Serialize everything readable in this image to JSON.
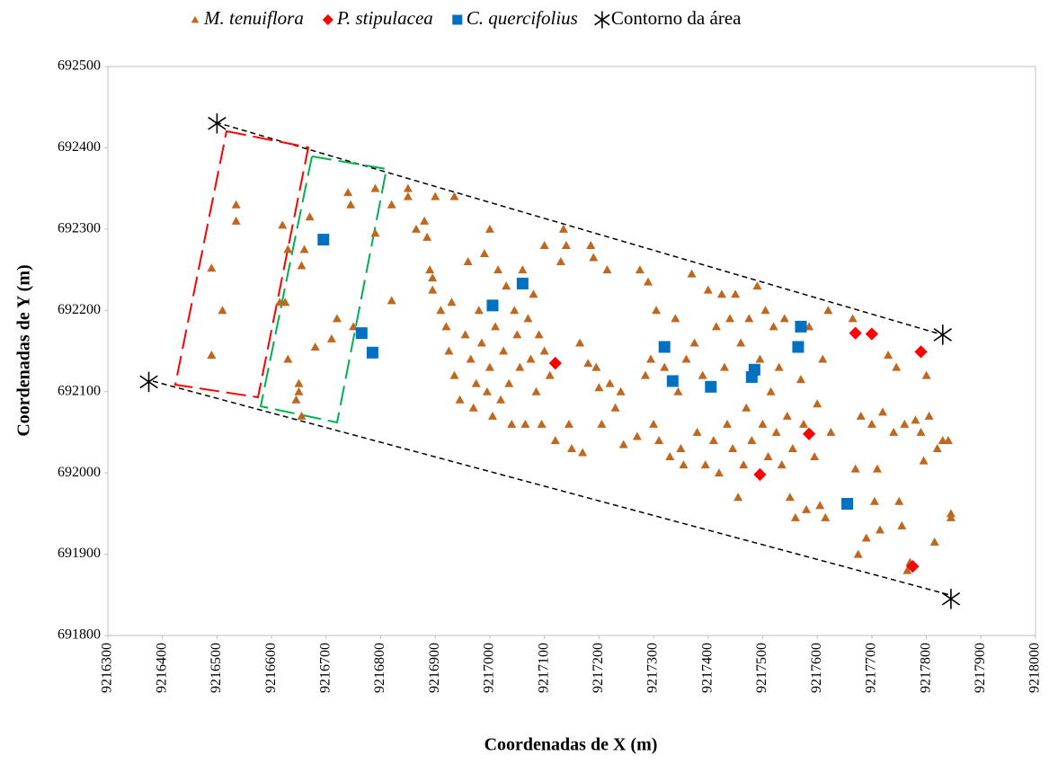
{
  "chart_data": {
    "type": "scatter",
    "x_label": "Coordenadas de X (m)",
    "y_label": "Coordenadas de Y (m)",
    "xlim": [
      9216300,
      9218000
    ],
    "xticks": [
      9216300,
      9216400,
      9216500,
      9216600,
      9216700,
      9216800,
      9216900,
      9217000,
      9217100,
      9217200,
      9217300,
      9217400,
      9217500,
      9217600,
      9217700,
      9217800,
      9217900,
      9218000
    ],
    "ylim": [
      691800,
      692500
    ],
    "yticks": [
      691800,
      691900,
      692000,
      692100,
      692200,
      692300,
      692400,
      692500
    ],
    "grid": false,
    "legend": "top",
    "series": [
      {
        "name": "M. tenuiflora",
        "color": "#c0661d",
        "marker": "triangle",
        "x": [
          9216490,
          9216490,
          9216510,
          9216535,
          9216535,
          9216620,
          9216615,
          9216625,
          9216630,
          9216655,
          9216660,
          9216670,
          9216680,
          9216710,
          9216720,
          9216740,
          9216745,
          9216750,
          9216630,
          9216650,
          9216650,
          9216645,
          9216655,
          9216790,
          9216790,
          9216820,
          9216820,
          9216850,
          9216850,
          9216865,
          9216880,
          9216885,
          9216890,
          9216895,
          9216895,
          9216900,
          9216935,
          9216910,
          9216920,
          9216925,
          9216930,
          9216935,
          9216945,
          9216955,
          9216960,
          9216965,
          9216970,
          9216975,
          9216980,
          9216985,
          9216990,
          9216995,
          9217000,
          9217000,
          9217005,
          9217010,
          9217015,
          9217020,
          9217025,
          9217030,
          9217035,
          9217040,
          9217045,
          9217050,
          9217055,
          9217060,
          9217065,
          9217070,
          9217075,
          9217080,
          9217085,
          9217090,
          9217095,
          9217100,
          9217100,
          9217110,
          9217120,
          9217130,
          9217135,
          9217140,
          9217145,
          9217150,
          9217165,
          9217170,
          9217180,
          9217185,
          9217190,
          9217195,
          9217200,
          9217205,
          9217215,
          9217220,
          9217230,
          9217240,
          9217245,
          9217270,
          9217275,
          9217285,
          9217290,
          9217295,
          9217300,
          9217305,
          9217310,
          9217320,
          9217330,
          9217340,
          9217345,
          9217350,
          9217355,
          9217360,
          9217370,
          9217375,
          9217380,
          9217390,
          9217395,
          9217400,
          9217410,
          9217415,
          9217420,
          9217425,
          9217430,
          9217435,
          9217440,
          9217445,
          9217450,
          9217455,
          9217460,
          9217465,
          9217470,
          9217475,
          9217480,
          9217490,
          9217495,
          9217500,
          9217505,
          9217510,
          9217515,
          9217520,
          9217525,
          9217530,
          9217535,
          9217540,
          9217545,
          9217550,
          9217555,
          9217560,
          9217570,
          9217575,
          9217580,
          9217585,
          9217595,
          9217600,
          9217605,
          9217610,
          9217615,
          9217620,
          9217625,
          9217665,
          9217670,
          9217675,
          9217680,
          9217690,
          9217700,
          9217705,
          9217710,
          9217715,
          9217720,
          9217730,
          9217740,
          9217745,
          9217750,
          9217755,
          9217760,
          9217765,
          9217770,
          9217780,
          9217790,
          9217795,
          9217800,
          9217805,
          9217815,
          9217820,
          9217830,
          9217840,
          9217845,
          9217845
        ],
        "values": [
          692252,
          692145,
          692200,
          692330,
          692310,
          692305,
          692210,
          692210,
          692275,
          692255,
          692275,
          692315,
          692155,
          692165,
          692190,
          692345,
          692330,
          692180,
          692140,
          692110,
          692100,
          692090,
          692070,
          692295,
          692350,
          692330,
          692212,
          692340,
          692350,
          692300,
          692310,
          692290,
          692250,
          692240,
          692225,
          692340,
          692340,
          692200,
          692180,
          692150,
          692210,
          692120,
          692090,
          692170,
          692260,
          692140,
          692080,
          692110,
          692200,
          692160,
          692270,
          692100,
          692300,
          692130,
          692070,
          692180,
          692250,
          692090,
          692150,
          692230,
          692110,
          692060,
          692200,
          692170,
          692130,
          692250,
          692060,
          692190,
          692140,
          692220,
          692100,
          692170,
          692060,
          692280,
          692150,
          692120,
          692040,
          692260,
          692300,
          692280,
          692060,
          692030,
          692160,
          692025,
          692135,
          692280,
          692265,
          692130,
          692105,
          692060,
          692250,
          692110,
          692080,
          692100,
          692035,
          692045,
          692250,
          692120,
          692235,
          692140,
          692060,
          692200,
          692040,
          692130,
          692020,
          692190,
          692100,
          692030,
          692010,
          692140,
          692245,
          692160,
          692050,
          692120,
          692010,
          692225,
          692040,
          692180,
          692000,
          692220,
          692130,
          692060,
          692190,
          692030,
          692220,
          691970,
          692160,
          692010,
          692080,
          692190,
          692040,
          692230,
          692140,
          692060,
          692200,
          692020,
          692100,
          692180,
          692050,
          692130,
          692010,
          692190,
          692070,
          691970,
          692030,
          691945,
          692115,
          692060,
          691955,
          692180,
          692020,
          692085,
          691960,
          692140,
          691945,
          692200,
          692050,
          692190,
          692005,
          691900,
          692070,
          691920,
          692060,
          691965,
          692005,
          691930,
          692075,
          692145,
          692050,
          692130,
          691965,
          691935,
          692060,
          691880,
          691890,
          692065,
          692050,
          692015,
          692120,
          692070,
          691915,
          692030,
          692040,
          692040,
          691950,
          691945
        ]
      },
      {
        "name": "P. stipulacea",
        "color": "#ff0000",
        "marker": "diamond",
        "x": [
          9217120,
          9217495,
          9217585,
          9217670,
          9217700,
          9217790,
          9217775
        ],
        "values": [
          692135,
          691998,
          692048,
          692172,
          692171,
          692149,
          691885
        ]
      },
      {
        "name": "C. quercifolius",
        "color": "#0070c0",
        "marker": "square",
        "x": [
          9216695,
          9216765,
          9216785,
          9217005,
          9217060,
          9217320,
          9217335,
          9217405,
          9217485,
          9217480,
          9217565,
          9217570,
          9217655
        ],
        "values": [
          692287,
          692172,
          692148,
          692206,
          692233,
          692155,
          692113,
          692106,
          692127,
          692118,
          692155,
          692180,
          691962
        ]
      },
      {
        "name": "Contorno da área",
        "color": "#000000",
        "marker": "star",
        "x": [
          9216500,
          9217830,
          9217845,
          9216375
        ],
        "values": [
          692430,
          692170,
          691845,
          692112
        ]
      }
    ]
  }
}
